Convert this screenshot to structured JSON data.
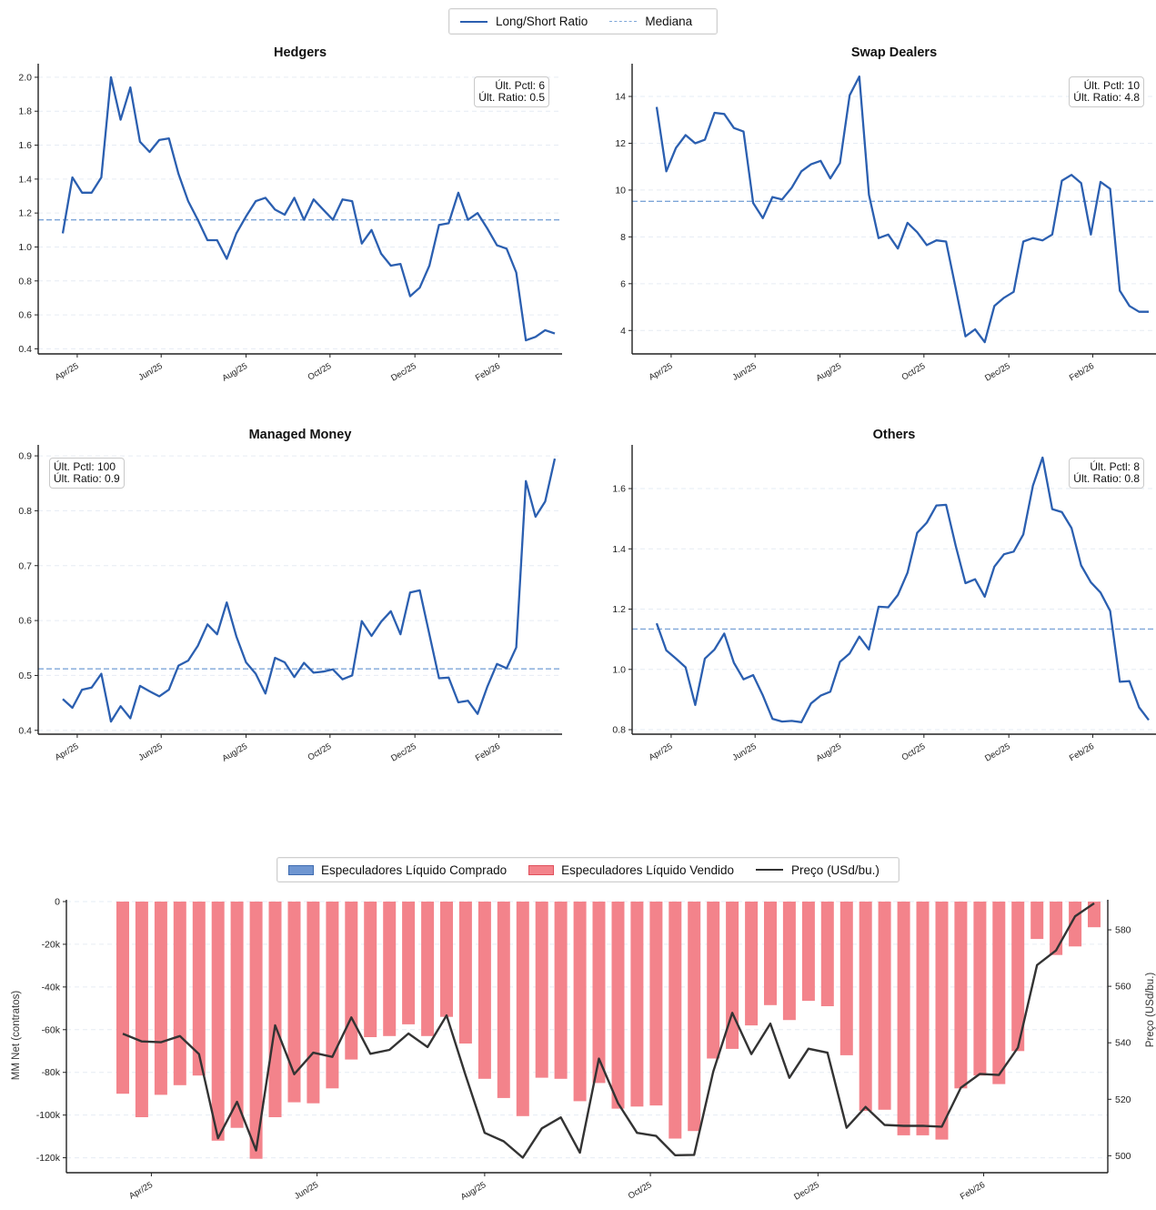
{
  "colors": {
    "ratio_line": "#2b5fb0",
    "median_line": "#7ea6d8",
    "grid": "#e6ecf4",
    "long_fill": "#6f96d1",
    "short_fill": "#f3838b",
    "price_line": "#333333"
  },
  "top_legend": {
    "ratio_label": "Long/Short Ratio",
    "median_label": "Mediana"
  },
  "bottom_legend": {
    "long_label": "Especuladores Líquido Comprado",
    "short_label": "Especuladores Líquido Vendido",
    "price_label": "Preço (USd/bu.)"
  },
  "chart_data": [
    {
      "type": "line",
      "title": "Hedgers",
      "ylim": [
        0.37,
        2.08
      ],
      "yticks": [
        0.4,
        0.6,
        0.8,
        1.0,
        1.2,
        1.4,
        1.6,
        1.8,
        2.0
      ],
      "ytick_labels": [
        "0.4",
        "0.6",
        "0.8",
        "1.0",
        "1.2",
        "1.4",
        "1.6",
        "1.8",
        "2.0"
      ],
      "xticks": [
        "Apr/25",
        "Jun/25",
        "Aug/25",
        "Oct/25",
        "Dec/25",
        "Feb/26"
      ],
      "median": 1.16,
      "stat_lines": [
        "Últ. Pctl: 6",
        "Últ. Ratio: 0.5"
      ],
      "stat_position": "top-right",
      "values": [
        1.08,
        1.41,
        1.32,
        1.32,
        1.41,
        2.0,
        1.75,
        1.94,
        1.62,
        1.56,
        1.63,
        1.64,
        1.43,
        1.27,
        1.16,
        1.04,
        1.04,
        0.93,
        1.08,
        1.18,
        1.27,
        1.29,
        1.22,
        1.19,
        1.29,
        1.16,
        1.28,
        1.22,
        1.16,
        1.28,
        1.27,
        1.02,
        1.1,
        0.96,
        0.89,
        0.9,
        0.71,
        0.76,
        0.89,
        1.13,
        1.14,
        1.32,
        1.16,
        1.2,
        1.11,
        1.01,
        0.99,
        0.85,
        0.45,
        0.47,
        0.51,
        0.49
      ]
    },
    {
      "type": "line",
      "title": "Swap Dealers",
      "ylim": [
        3.0,
        15.4
      ],
      "yticks": [
        4,
        6,
        8,
        10,
        12,
        14
      ],
      "ytick_labels": [
        "4",
        "6",
        "8",
        "10",
        "12",
        "14"
      ],
      "xticks": [
        "Apr/25",
        "Jun/25",
        "Aug/25",
        "Oct/25",
        "Dec/25",
        "Feb/26"
      ],
      "median": 9.52,
      "stat_lines": [
        "Últ. Pctl: 10",
        "Últ. Ratio: 4.8"
      ],
      "stat_position": "top-right",
      "values": [
        13.55,
        10.8,
        11.8,
        12.35,
        12.0,
        12.15,
        13.3,
        13.25,
        12.65,
        12.5,
        9.45,
        8.8,
        9.7,
        9.6,
        10.1,
        10.8,
        11.1,
        11.25,
        10.5,
        11.15,
        14.05,
        14.85,
        9.8,
        7.95,
        8.1,
        7.5,
        8.6,
        8.2,
        7.65,
        7.85,
        7.8,
        5.8,
        3.75,
        4.05,
        3.5,
        5.05,
        5.4,
        5.65,
        7.8,
        7.95,
        7.85,
        8.1,
        10.4,
        10.65,
        10.3,
        8.1,
        10.35,
        10.05,
        5.7,
        5.05,
        4.8,
        4.8
      ]
    },
    {
      "type": "line",
      "title": "Managed Money",
      "ylim": [
        0.393,
        0.92
      ],
      "yticks": [
        0.4,
        0.5,
        0.6,
        0.7,
        0.8,
        0.9
      ],
      "ytick_labels": [
        "0.4",
        "0.5",
        "0.6",
        "0.7",
        "0.8",
        "0.9"
      ],
      "xticks": [
        "Apr/25",
        "Jun/25",
        "Aug/25",
        "Oct/25",
        "Dec/25",
        "Feb/26"
      ],
      "median": 0.512,
      "stat_lines": [
        "Últ. Pctl: 100",
        "Últ. Ratio: 0.9"
      ],
      "stat_position": "top-left",
      "values": [
        0.457,
        0.441,
        0.474,
        0.478,
        0.503,
        0.416,
        0.444,
        0.422,
        0.481,
        0.471,
        0.462,
        0.474,
        0.518,
        0.527,
        0.554,
        0.593,
        0.575,
        0.633,
        0.571,
        0.524,
        0.503,
        0.467,
        0.532,
        0.524,
        0.497,
        0.523,
        0.505,
        0.507,
        0.511,
        0.493,
        0.5,
        0.599,
        0.572,
        0.598,
        0.617,
        0.575,
        0.651,
        0.655,
        0.575,
        0.495,
        0.496,
        0.451,
        0.454,
        0.43,
        0.479,
        0.521,
        0.513,
        0.551,
        0.854,
        0.789,
        0.817,
        0.895
      ]
    },
    {
      "type": "line",
      "title": "Others",
      "ylim": [
        0.785,
        1.745
      ],
      "yticks": [
        0.8,
        1.0,
        1.2,
        1.4,
        1.6
      ],
      "ytick_labels": [
        "0.8",
        "1.0",
        "1.2",
        "1.4",
        "1.6"
      ],
      "xticks": [
        "Apr/25",
        "Jun/25",
        "Aug/25",
        "Oct/25",
        "Dec/25",
        "Feb/26"
      ],
      "median": 1.134,
      "stat_lines": [
        "Últ. Pctl: 8",
        "Últ. Ratio: 0.8"
      ],
      "stat_position": "top-right",
      "values": [
        1.153,
        1.063,
        1.036,
        1.007,
        0.882,
        1.036,
        1.066,
        1.119,
        1.022,
        0.967,
        0.981,
        0.914,
        0.836,
        0.827,
        0.829,
        0.825,
        0.887,
        0.913,
        0.926,
        1.025,
        1.053,
        1.109,
        1.066,
        1.208,
        1.206,
        1.247,
        1.321,
        1.453,
        1.487,
        1.544,
        1.546,
        1.41,
        1.286,
        1.299,
        1.241,
        1.341,
        1.382,
        1.391,
        1.448,
        1.61,
        1.703,
        1.532,
        1.522,
        1.469,
        1.345,
        1.289,
        1.255,
        1.194,
        0.959,
        0.961,
        0.874,
        0.832
      ]
    },
    {
      "type": "bar",
      "title": "",
      "ylabel": "MM Net (contratos)",
      "y2label": "Preço (USd/bu.)",
      "ylim": [
        -127000,
        0
      ],
      "yticks": [
        0,
        -20000,
        -40000,
        -60000,
        -80000,
        -100000,
        -120000
      ],
      "ytick_labels": [
        "0",
        "-20k",
        "-40k",
        "-60k",
        "-80k",
        "-100k",
        "-120k"
      ],
      "y2lim": [
        494,
        590
      ],
      "y2ticks": [
        500,
        520,
        540,
        560,
        580
      ],
      "y2tick_labels": [
        "500",
        "520",
        "540",
        "560",
        "580"
      ],
      "xticks": [
        "Apr/25",
        "Jun/25",
        "Aug/25",
        "Oct/25",
        "Dec/25",
        "Feb/26"
      ],
      "series": [
        {
          "name": "Especuladores Líquido Vendido",
          "values": [
            -90000,
            -101000,
            -90500,
            -86000,
            -81500,
            -112000,
            -106000,
            -120500,
            -101000,
            -94000,
            -94500,
            -87500,
            -74000,
            -63500,
            -63000,
            -57500,
            -63000,
            -54000,
            -66500,
            -83000,
            -92000,
            -100500,
            -82500,
            -83000,
            -93500,
            -85000,
            -97000,
            -96000,
            -95500,
            -111000,
            -107500,
            -73500,
            -69000,
            -58000,
            -48500,
            -55500,
            -46500,
            -49000,
            -72000,
            -98000,
            -97500,
            -109500,
            -109500,
            -111500,
            -87500,
            -81500,
            -85500,
            -70000,
            -17500,
            -25000,
            -21000,
            -12000
          ]
        },
        {
          "name": "Preço (USd/bu.)",
          "values": [
            543.2,
            540.5,
            540.2,
            542.4,
            536.0,
            506.2,
            519.1,
            501.9,
            546.2,
            528.9,
            536.5,
            535.0,
            549.0,
            536.1,
            537.5,
            543.3,
            538.5,
            549.7,
            528.5,
            508.1,
            505.1,
            499.3,
            509.7,
            513.6,
            501.1,
            534.4,
            518.6,
            508.1,
            507.0,
            500.2,
            500.3,
            529.8,
            550.6,
            536.0,
            546.8,
            527.6,
            537.9,
            536.5,
            509.9,
            517.3,
            510.9,
            510.6,
            510.6,
            510.3,
            524.1,
            529.0,
            528.6,
            538.3,
            567.5,
            572.7,
            584.8,
            589.4
          ]
        }
      ]
    }
  ]
}
